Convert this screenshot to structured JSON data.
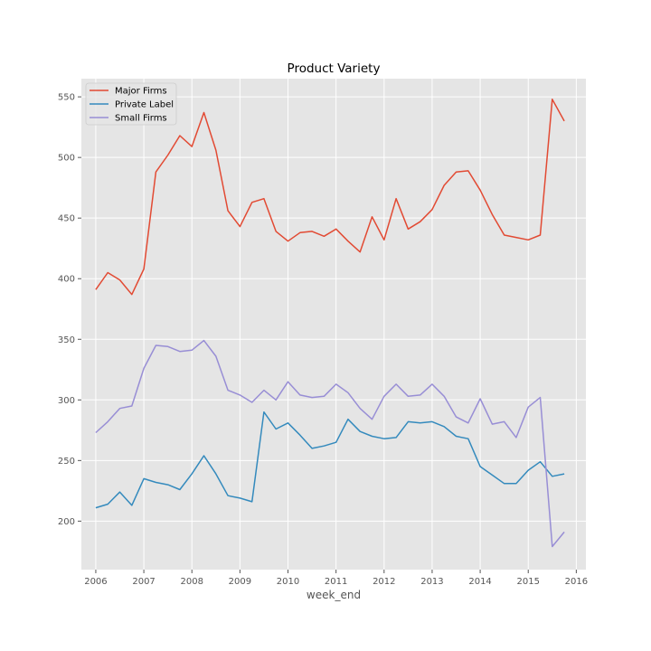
{
  "chart_data": {
    "type": "line",
    "title": "Product Variety",
    "xlabel": "week_end",
    "ylabel": "",
    "xlim": [
      2005.7,
      2016.2
    ],
    "ylim": [
      160,
      565
    ],
    "xticks": [
      2006,
      2007,
      2008,
      2009,
      2010,
      2011,
      2012,
      2013,
      2014,
      2015,
      2016
    ],
    "xtick_labels": [
      "2006",
      "2007",
      "2008",
      "2009",
      "2010",
      "2011",
      "2012",
      "2013",
      "2014",
      "2015",
      "2016"
    ],
    "yticks": [
      200,
      250,
      300,
      350,
      400,
      450,
      500,
      550
    ],
    "ytick_labels": [
      "200",
      "250",
      "300",
      "350",
      "400",
      "450",
      "500",
      "550"
    ],
    "grid": true,
    "legend_position": "top-left",
    "x": [
      2006.0,
      2006.25,
      2006.5,
      2006.75,
      2007.0,
      2007.25,
      2007.5,
      2007.75,
      2008.0,
      2008.25,
      2008.5,
      2008.75,
      2009.0,
      2009.25,
      2009.5,
      2009.75,
      2010.0,
      2010.25,
      2010.5,
      2010.75,
      2011.0,
      2011.25,
      2011.5,
      2011.75,
      2012.0,
      2012.25,
      2012.5,
      2012.75,
      2013.0,
      2013.25,
      2013.5,
      2013.75,
      2014.0,
      2014.25,
      2014.5,
      2014.75,
      2015.0,
      2015.25,
      2015.5,
      2015.75
    ],
    "series": [
      {
        "name": "Major Firms",
        "color": "#e24a33",
        "values": [
          391,
          405,
          399,
          387,
          408,
          488,
          502,
          518,
          509,
          537,
          506,
          456,
          443,
          463,
          466,
          439,
          431,
          438,
          439,
          435,
          441,
          431,
          422,
          451,
          432,
          466,
          441,
          447,
          457,
          477,
          488,
          489,
          473,
          453,
          436,
          434,
          432,
          436,
          548,
          530
        ]
      },
      {
        "name": "Private Label",
        "color": "#348abd",
        "values": [
          211,
          214,
          224,
          213,
          235,
          232,
          230,
          226,
          239,
          254,
          239,
          221,
          219,
          216,
          290,
          276,
          281,
          271,
          260,
          262,
          265,
          284,
          274,
          270,
          268,
          269,
          282,
          281,
          282,
          278,
          270,
          268,
          245,
          238,
          231,
          231,
          242,
          249,
          237,
          239
        ]
      },
      {
        "name": "Small Firms",
        "color": "#988ed5",
        "values": [
          273,
          282,
          293,
          295,
          326,
          345,
          344,
          340,
          341,
          349,
          336,
          308,
          304,
          298,
          308,
          300,
          315,
          304,
          302,
          303,
          313,
          306,
          293,
          284,
          303,
          313,
          303,
          304,
          313,
          303,
          286,
          281,
          301,
          280,
          282,
          269,
          294,
          302,
          179,
          191
        ]
      }
    ]
  }
}
